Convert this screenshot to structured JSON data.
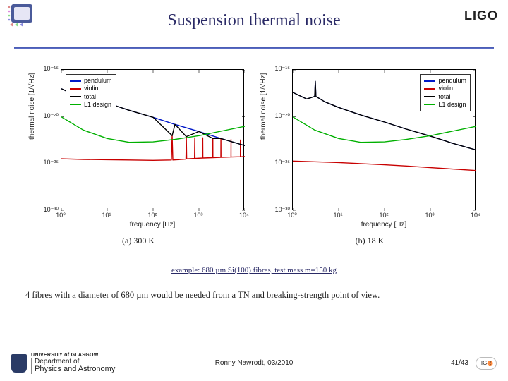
{
  "header": {
    "title": "Suspension thermal noise",
    "logo_right_text": "LIGO",
    "rule_color": "#3b4ca0"
  },
  "charts": {
    "ylabel": "thermal noise [1/√Hz]",
    "xlabel": "frequency [Hz]",
    "xlim": [
      1,
      10000
    ],
    "ylim": [
      1e-30,
      1e-15
    ],
    "xticks": [
      1,
      10,
      100,
      1000,
      10000
    ],
    "xtick_labels": [
      "10⁰",
      "10¹",
      "10²",
      "10³",
      "10⁴"
    ],
    "yticks": [
      1e-30,
      1e-25,
      1e-20,
      1e-15
    ],
    "ytick_labels": [
      "10⁻³⁰",
      "10⁻²⁵",
      "10⁻²⁰",
      "10⁻¹⁵"
    ],
    "legend": [
      {
        "label": "pendulum",
        "color": "#0018c8"
      },
      {
        "label": "violin",
        "color": "#c80000"
      },
      {
        "label": "total",
        "color": "#000000"
      },
      {
        "label": "L1 design",
        "color": "#00b000"
      }
    ],
    "grid_color": "#d9d9d9",
    "line_width": 1.4,
    "axis_fontsize": 10,
    "panels": [
      {
        "caption": "(a)  300 K",
        "series": {
          "pendulum": [
            [
              1,
              1e-17
            ],
            [
              2,
              2e-18
            ],
            [
              3,
              4e-18
            ],
            [
              3.1,
              1e-16
            ],
            [
              3.2,
              4e-18
            ],
            [
              5,
              1.2e-18
            ],
            [
              10,
              3e-19
            ],
            [
              30,
              5e-20
            ],
            [
              100,
              9e-21
            ],
            [
              300,
              1.6e-21
            ],
            [
              1000,
              2.8e-22
            ],
            [
              3000,
              5e-23
            ],
            [
              10000,
              9e-24
            ]
          ],
          "violin": [
            [
              1,
              3.5e-25
            ],
            [
              3,
              3e-25
            ],
            [
              10,
              2.8e-25
            ],
            [
              30,
              2.6e-25
            ],
            [
              100,
              2.4e-25
            ],
            [
              250,
              2.6e-25
            ],
            [
              260,
              1e-22
            ],
            [
              270,
              2.6e-25
            ],
            [
              520,
              3.2e-25
            ],
            [
              530,
              8e-23
            ],
            [
              540,
              3.4e-25
            ],
            [
              800,
              3.8e-25
            ],
            [
              810,
              6e-23
            ],
            [
              820,
              3.8e-25
            ],
            [
              1200,
              4.2e-25
            ],
            [
              1210,
              6e-23
            ],
            [
              1220,
              4.2e-25
            ],
            [
              2000,
              4.6e-25
            ],
            [
              2010,
              5e-23
            ],
            [
              2020,
              4.6e-25
            ],
            [
              3000,
              5e-25
            ],
            [
              3010,
              4.5e-23
            ],
            [
              3020,
              5e-25
            ],
            [
              5000,
              5.4e-25
            ],
            [
              5010,
              4e-23
            ],
            [
              5020,
              5.4e-25
            ],
            [
              8000,
              5.8e-25
            ],
            [
              8010,
              3.5e-23
            ],
            [
              8020,
              5.8e-25
            ],
            [
              10000,
              6e-25
            ]
          ],
          "total": [
            [
              1,
              1e-17
            ],
            [
              2,
              2e-18
            ],
            [
              3,
              4e-18
            ],
            [
              3.1,
              1e-16
            ],
            [
              3.2,
              4e-18
            ],
            [
              5,
              1.2e-18
            ],
            [
              10,
              3e-19
            ],
            [
              30,
              5e-20
            ],
            [
              100,
              9e-21
            ],
            [
              260,
              1e-22
            ],
            [
              300,
              1.6e-21
            ],
            [
              530,
              8e-23
            ],
            [
              1000,
              2.8e-22
            ],
            [
              2010,
              5e-23
            ],
            [
              3000,
              5e-23
            ],
            [
              10000,
              9e-24
            ]
          ],
          "L1 design": [
            [
              1,
              1e-20
            ],
            [
              3,
              4e-22
            ],
            [
              10,
              5e-23
            ],
            [
              30,
              2e-23
            ],
            [
              100,
              2.2e-23
            ],
            [
              300,
              4e-23
            ],
            [
              1000,
              1e-22
            ],
            [
              3000,
              3e-22
            ],
            [
              10000,
              1e-21
            ]
          ]
        }
      },
      {
        "caption": "(b)  18 K",
        "series": {
          "pendulum": [
            [
              1,
              4e-18
            ],
            [
              2,
              8e-19
            ],
            [
              3,
              1.5e-18
            ],
            [
              3.1,
              6e-17
            ],
            [
              3.2,
              1.5e-18
            ],
            [
              5,
              4e-19
            ],
            [
              10,
              1e-19
            ],
            [
              30,
              1.6e-20
            ],
            [
              100,
              2.8e-21
            ],
            [
              300,
              5e-22
            ],
            [
              1000,
              9e-23
            ],
            [
              3000,
              1.6e-23
            ],
            [
              10000,
              3e-24
            ]
          ],
          "violin": [
            [
              1,
              2e-25
            ],
            [
              10,
              1.4e-25
            ],
            [
              100,
              8e-26
            ],
            [
              300,
              6e-26
            ],
            [
              1000,
              4e-26
            ],
            [
              10000,
              2e-26
            ]
          ],
          "total": [
            [
              1,
              4e-18
            ],
            [
              2,
              8e-19
            ],
            [
              3,
              1.5e-18
            ],
            [
              3.1,
              6e-17
            ],
            [
              3.2,
              1.5e-18
            ],
            [
              5,
              4e-19
            ],
            [
              10,
              1e-19
            ],
            [
              30,
              1.6e-20
            ],
            [
              100,
              2.8e-21
            ],
            [
              300,
              5e-22
            ],
            [
              1000,
              9e-23
            ],
            [
              3000,
              1.6e-23
            ],
            [
              10000,
              3e-24
            ]
          ],
          "L1 design": [
            [
              1,
              1e-20
            ],
            [
              3,
              4e-22
            ],
            [
              10,
              5e-23
            ],
            [
              30,
              2e-23
            ],
            [
              100,
              2.2e-23
            ],
            [
              300,
              4e-23
            ],
            [
              1000,
              1e-22
            ],
            [
              3000,
              3e-22
            ],
            [
              10000,
              1e-21
            ]
          ]
        }
      }
    ]
  },
  "text": {
    "example": "example: 680 µm Si(100) fibres, test mass m=150 kg",
    "conclusion": "4 fibres with a diameter of 680 µm would be needed from a TN and breaking-strength point of view."
  },
  "footer": {
    "affiliation_l1": "UNIVERSITY of GLASGOW",
    "affiliation_l2": "Department of",
    "affiliation_l3": "Physics and Astronomy",
    "author_date": "Ronny Nawrodt, 03/2010",
    "page": "41/43",
    "igr_text": "IGR"
  }
}
